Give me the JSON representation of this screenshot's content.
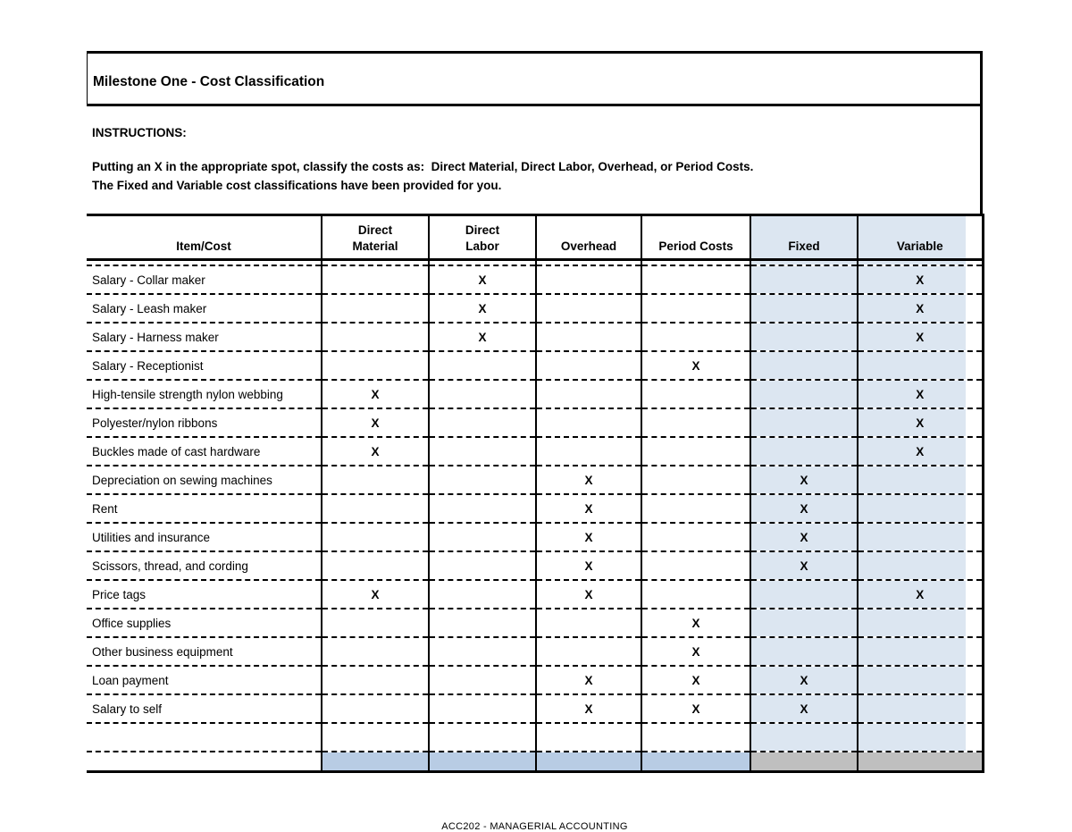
{
  "title_box": {
    "title": "Milestone One - Cost Classification"
  },
  "instructions": {
    "heading": "INSTRUCTIONS:",
    "lines": [
      "Putting an X in the appropriate spot, classify the costs as:  Direct Material, Direct Labor, Overhead, or Period Costs.",
      "The Fixed and Variable cost classifications have been provided for you."
    ]
  },
  "table": {
    "columns": [
      "Item/Cost",
      "Direct\nMaterial",
      "Direct\nLabor",
      "Overhead",
      "Period Costs",
      "Fixed",
      "Variable"
    ],
    "mark_symbol": "X",
    "rows": [
      {
        "type": "data",
        "label": "Salary - Collar maker",
        "marks": [
          "",
          "X",
          "",
          "",
          "",
          "X"
        ]
      },
      {
        "type": "data",
        "label": "Salary - Leash maker",
        "marks": [
          "",
          "X",
          "",
          "",
          "",
          "X"
        ]
      },
      {
        "type": "data",
        "label": "Salary - Harness maker",
        "marks": [
          "",
          "X",
          "",
          "",
          "",
          "X"
        ]
      },
      {
        "type": "data",
        "label": "Salary - Receptionist",
        "marks": [
          "",
          "",
          "",
          "X",
          "",
          ""
        ]
      },
      {
        "type": "data",
        "label": "High-tensile strength nylon webbing",
        "marks": [
          "X",
          "",
          "",
          "",
          "",
          "X"
        ]
      },
      {
        "type": "data",
        "label": "Polyester/nylon ribbons",
        "marks": [
          "X",
          "",
          "",
          "",
          "",
          "X"
        ]
      },
      {
        "type": "data",
        "label": "Buckles made of cast hardware",
        "marks": [
          "X",
          "",
          "",
          "",
          "",
          "X"
        ]
      },
      {
        "type": "data",
        "label": "Depreciation on sewing machines",
        "marks": [
          "",
          "",
          "X",
          "",
          "X",
          ""
        ]
      },
      {
        "type": "data",
        "label": "Rent",
        "marks": [
          "",
          "",
          "X",
          "",
          "X",
          ""
        ]
      },
      {
        "type": "data",
        "label": "Utilities and insurance",
        "marks": [
          "",
          "",
          "X",
          "",
          "X",
          ""
        ]
      },
      {
        "type": "data",
        "label": "Scissors, thread, and cording",
        "marks": [
          "",
          "",
          "X",
          "",
          "X",
          ""
        ]
      },
      {
        "type": "data",
        "label": "Price tags",
        "marks": [
          "X",
          "",
          "X",
          "",
          "",
          "X"
        ]
      },
      {
        "type": "data",
        "label": "Office supplies",
        "marks": [
          "",
          "",
          "",
          "X",
          "",
          ""
        ]
      },
      {
        "type": "data",
        "label": "Other business equipment",
        "marks": [
          "",
          "",
          "",
          "X",
          "",
          ""
        ]
      },
      {
        "type": "data",
        "label": "Loan payment",
        "marks": [
          "",
          "",
          "X",
          "X",
          "X",
          ""
        ]
      },
      {
        "type": "data",
        "label": "Salary to self",
        "marks": [
          "",
          "",
          "X",
          "X",
          "X",
          ""
        ]
      },
      {
        "type": "empty",
        "label": "",
        "marks": [
          "",
          "",
          "",
          "",
          "",
          ""
        ]
      },
      {
        "type": "total",
        "label": "",
        "marks": [
          "",
          "",
          "",
          "",
          "",
          ""
        ]
      }
    ]
  },
  "footer": {
    "text": "ACC202 - MANAGERIAL ACCOUNTING"
  },
  "colors": {
    "column_highlight": "#DCE6F1",
    "total_blue": "#B8CCE4",
    "total_gray": "#BFBFBF",
    "border": "#000000"
  }
}
